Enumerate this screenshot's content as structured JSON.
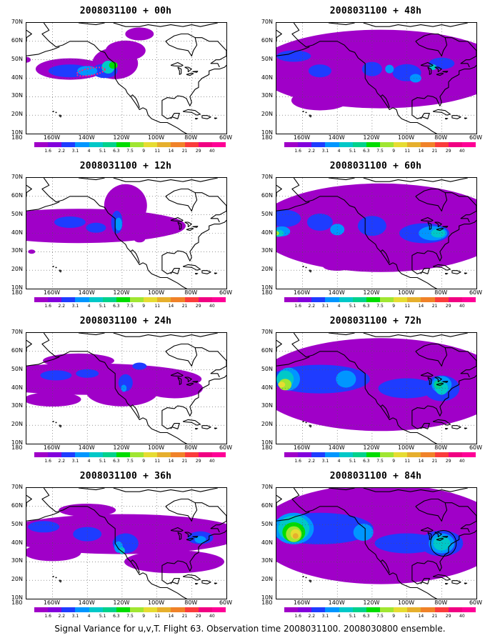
{
  "panels": [
    {
      "title": "2008031100 + 00h",
      "lead": "00h"
    },
    {
      "title": "2008031100 + 12h",
      "lead": "12h"
    },
    {
      "title": "2008031100 + 24h",
      "lead": "24h"
    },
    {
      "title": "2008031100 + 36h",
      "lead": "36h"
    },
    {
      "title": "2008031100 + 48h",
      "lead": "48h"
    },
    {
      "title": "2008031100 + 60h",
      "lead": "60h"
    },
    {
      "title": "2008031100 + 72h",
      "lead": "72h"
    },
    {
      "title": "2008031100 + 84h",
      "lead": "84h"
    }
  ],
  "lat_labels": [
    "70N",
    "60N",
    "50N",
    "40N",
    "30N",
    "20N",
    "10N"
  ],
  "lon_labels": [
    "180",
    "160W",
    "140W",
    "120W",
    "100W",
    "80W",
    "60W"
  ],
  "colorbar": {
    "levels": [
      "1.6",
      "2.2",
      "3.1",
      "4",
      "5.1",
      "6.3",
      "7.5",
      "9",
      "11",
      "14",
      "21",
      "29",
      "40"
    ],
    "colors": [
      "#a000c8",
      "#8200dc",
      "#1e3cff",
      "#0096ff",
      "#00c8c8",
      "#00d28c",
      "#00dc00",
      "#a0e632",
      "#e6dc32",
      "#e6af2d",
      "#f08228",
      "#fa3c3c",
      "#f00082",
      "#ff0096"
    ]
  },
  "shade_colors": {
    "l1": "#a000c8",
    "l2": "#8200dc",
    "l3": "#1e3cff",
    "l4": "#0096ff",
    "l5": "#00c8c8",
    "l6": "#00d28c",
    "l7": "#00dc00",
    "l8": "#a0e632",
    "l9": "#e6dc32",
    "l10": "#e6af2d"
  },
  "footer": "Signal Variance for u,v,T. Flight 63. Observation time 2008031100. 2008030800 ensemble."
}
